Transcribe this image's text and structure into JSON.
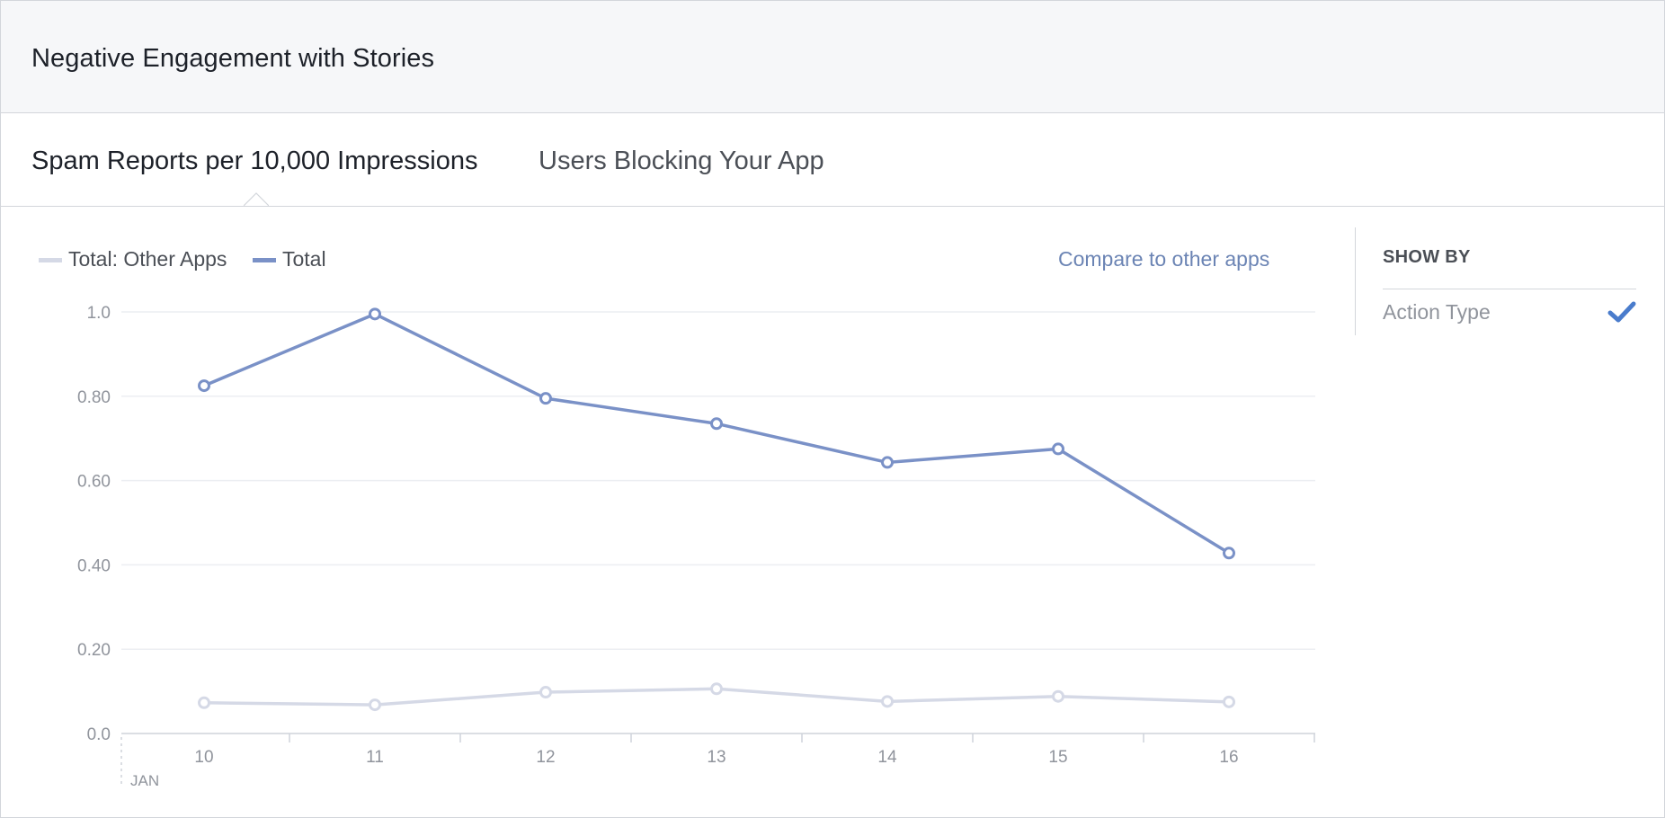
{
  "header": {
    "title": "Negative Engagement with Stories"
  },
  "tabs": [
    {
      "label": "Spam Reports per 10,000 Impressions",
      "active": true
    },
    {
      "label": "Users Blocking Your App",
      "active": false
    }
  ],
  "legend": [
    {
      "label": "Total: Other Apps",
      "color": "#d5d9e6"
    },
    {
      "label": "Total",
      "color": "#7a91c7"
    }
  ],
  "compare_link": "Compare to other apps",
  "show_by": {
    "title": "SHOW BY",
    "option": "Action Type",
    "check_icon": "checkmark-icon",
    "check_color": "#4a7ccc"
  },
  "chart_data": {
    "type": "line",
    "x": [
      "10",
      "11",
      "12",
      "13",
      "14",
      "15",
      "16"
    ],
    "x_sublabel": "JAN",
    "y_ticks": [
      "0.0",
      "0.20",
      "0.40",
      "0.60",
      "0.80",
      "1.0"
    ],
    "ylim": [
      0,
      1.0
    ],
    "grid": true,
    "legend_position": "top-left",
    "series": [
      {
        "name": "Total: Other Apps",
        "color": "#d5d9e6",
        "values": [
          0.073,
          0.068,
          0.098,
          0.106,
          0.076,
          0.088,
          0.075
        ]
      },
      {
        "name": "Total",
        "color": "#7a91c7",
        "values": [
          0.825,
          0.995,
          0.795,
          0.735,
          0.643,
          0.675,
          0.428
        ]
      }
    ]
  }
}
